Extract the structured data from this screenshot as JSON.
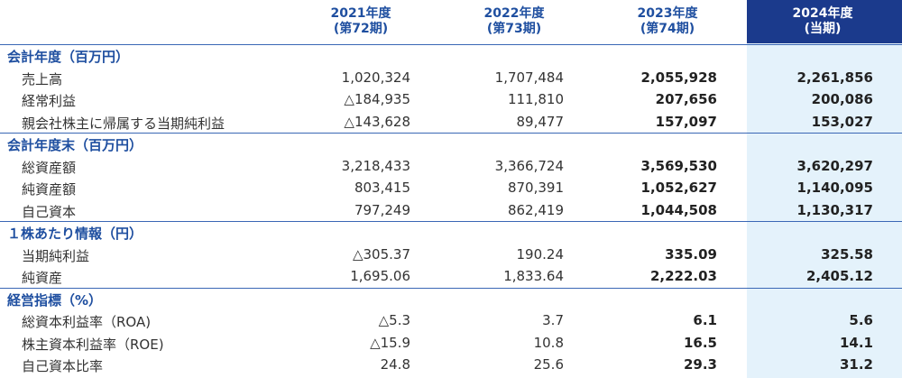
{
  "header": {
    "columns": [
      {
        "year": "2021年度",
        "period": "(第72期)"
      },
      {
        "year": "2022年度",
        "period": "(第73期)"
      },
      {
        "year": "2023年度",
        "period": "(第74期)"
      },
      {
        "year": "2024年度",
        "period": "(当期)"
      }
    ]
  },
  "sections": [
    {
      "title": "会計年度（百万円）",
      "rows": [
        {
          "label": "売上高",
          "values": [
            "1,020,324",
            "1,707,484",
            "2,055,928",
            "2,261,856"
          ]
        },
        {
          "label": "経常利益",
          "values": [
            "△184,935",
            "111,810",
            "207,656",
            "200,086"
          ]
        },
        {
          "label": "親会社株主に帰属する当期純利益",
          "values": [
            "△143,628",
            "89,477",
            "157,097",
            "153,027"
          ]
        }
      ]
    },
    {
      "title": "会計年度末（百万円）",
      "rows": [
        {
          "label": "総資産額",
          "values": [
            "3,218,433",
            "3,366,724",
            "3,569,530",
            "3,620,297"
          ]
        },
        {
          "label": "純資産額",
          "values": [
            "803,415",
            "870,391",
            "1,052,627",
            "1,140,095"
          ]
        },
        {
          "label": "自己資本",
          "values": [
            "797,249",
            "862,419",
            "1,044,508",
            "1,130,317"
          ]
        }
      ]
    },
    {
      "title": "１株あたり情報（円）",
      "rows": [
        {
          "label": "当期純利益",
          "values": [
            "△305.37",
            "190.24",
            "335.09",
            "325.58"
          ]
        },
        {
          "label": "純資産",
          "values": [
            "1,695.06",
            "1,833.64",
            "2,222.03",
            "2,405.12"
          ]
        }
      ]
    },
    {
      "title": "経営指標（%）",
      "rows": [
        {
          "label": "総資本利益率（ROA)",
          "values": [
            "△5.3",
            "3.7",
            "6.1",
            "5.6"
          ]
        },
        {
          "label": "株主資本利益率（ROE)",
          "values": [
            "△15.9",
            "10.8",
            "16.5",
            "14.1"
          ]
        },
        {
          "label": "自己資本比率",
          "values": [
            "24.8",
            "25.6",
            "29.3",
            "31.2"
          ]
        }
      ]
    }
  ]
}
